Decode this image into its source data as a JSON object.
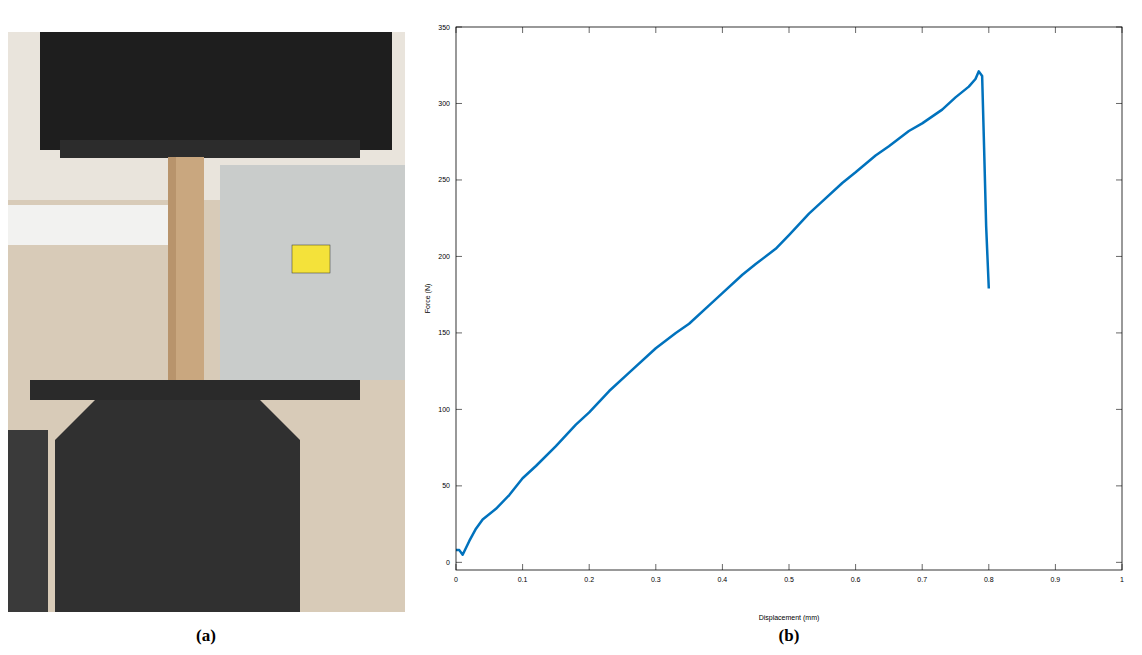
{
  "photo_label": "(a)",
  "chart_data": {
    "type": "line",
    "label": "(b)",
    "x_label": "Displacement (mm)",
    "y_label": "Force (N)",
    "color": "#0072bd",
    "x": [
      0,
      0.005,
      0.01,
      0.02,
      0.03,
      0.04,
      0.06,
      0.08,
      0.1,
      0.12,
      0.15,
      0.18,
      0.2,
      0.23,
      0.26,
      0.3,
      0.33,
      0.35,
      0.38,
      0.4,
      0.43,
      0.45,
      0.48,
      0.5,
      0.53,
      0.55,
      0.58,
      0.6,
      0.63,
      0.65,
      0.68,
      0.7,
      0.73,
      0.75,
      0.77,
      0.78,
      0.785,
      0.79,
      0.793,
      0.796,
      0.8
    ],
    "values": [
      8,
      8,
      5,
      14,
      22,
      28,
      35,
      44,
      55,
      63,
      76,
      90,
      98,
      112,
      124,
      140,
      150,
      156,
      168,
      176,
      188,
      195,
      205,
      214,
      228,
      236,
      248,
      255,
      266,
      272,
      282,
      287,
      296,
      304,
      311,
      316,
      321,
      318,
      270,
      220,
      179
    ],
    "xlim": [
      0,
      1
    ],
    "ylim": [
      -5,
      350
    ],
    "xticks": [
      0,
      0.1,
      0.2,
      0.3,
      0.4,
      0.5,
      0.6,
      0.7,
      0.8,
      0.9,
      1
    ],
    "yticks": [
      0,
      50,
      100,
      150,
      200,
      250,
      300,
      350
    ],
    "grid": false
  }
}
